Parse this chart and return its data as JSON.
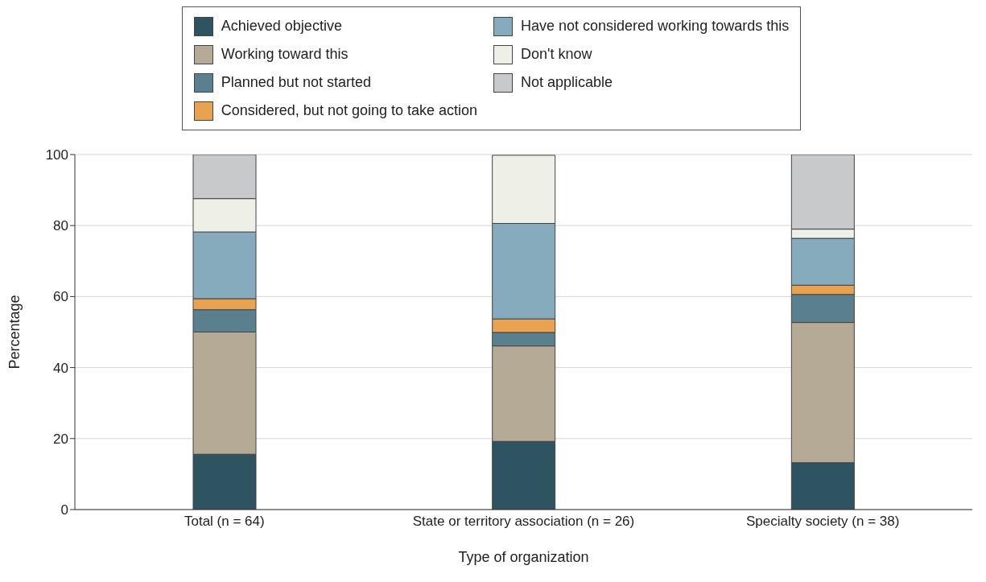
{
  "chart_data": {
    "type": "bar",
    "stacked": true,
    "xlabel": "Type of organization",
    "ylabel": "Percentage",
    "categories": [
      "Total (n = 64)",
      "State or territory association (n = 26)",
      "Specialty society (n = 38)"
    ],
    "series": [
      {
        "name": "Achieved objective",
        "color": "#2e5461",
        "values": [
          15.6,
          19.2,
          13.2
        ]
      },
      {
        "name": "Working toward this",
        "color": "#b5aa96",
        "values": [
          34.4,
          26.9,
          39.5
        ]
      },
      {
        "name": "Planned but not started",
        "color": "#5a7f8f",
        "values": [
          6.3,
          3.8,
          7.9
        ]
      },
      {
        "name": "Considered, but not going to take action",
        "color": "#e8a250",
        "values": [
          3.1,
          3.8,
          2.6
        ]
      },
      {
        "name": "Have not considered working towards this",
        "color": "#86abbc",
        "values": [
          18.8,
          26.9,
          13.2
        ]
      },
      {
        "name": "Don't know",
        "color": "#eeefe6",
        "values": [
          9.4,
          19.2,
          2.6
        ]
      },
      {
        "name": "Not applicable",
        "color": "#c8c9cb",
        "values": [
          12.5,
          0,
          21.1
        ]
      }
    ],
    "ylim": [
      0,
      100
    ],
    "yticks": [
      0,
      20,
      40,
      60,
      80,
      100
    ],
    "grid": "y",
    "legend": "top"
  }
}
